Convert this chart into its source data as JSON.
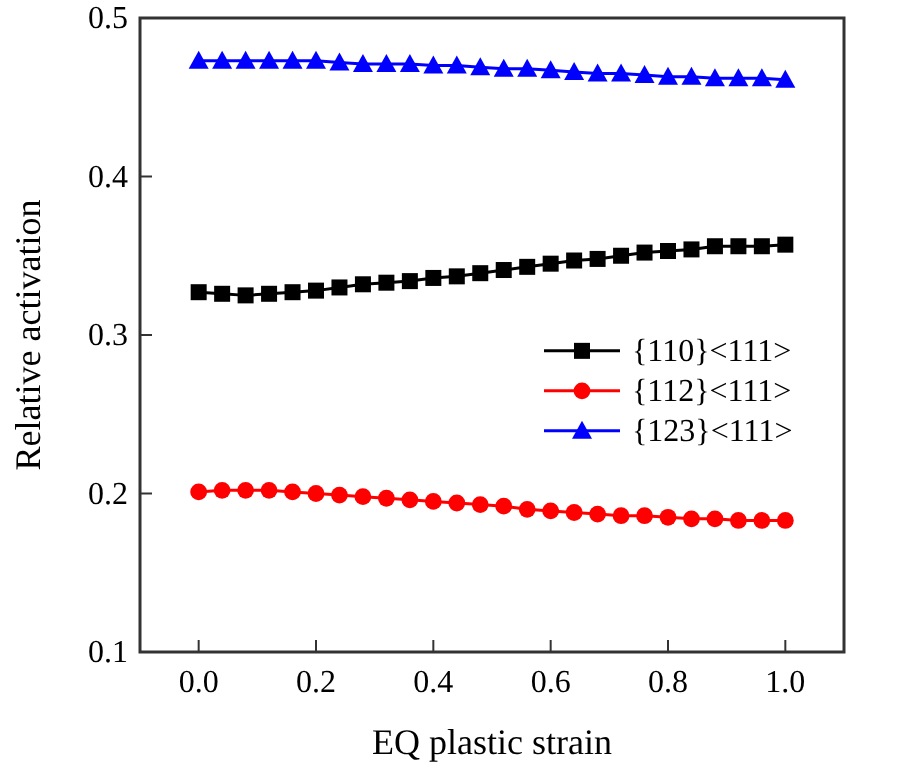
{
  "chart_data": {
    "type": "line",
    "xlabel": "EQ plastic strain",
    "ylabel": "Relative activation",
    "x": [
      0,
      0.04,
      0.08,
      0.12,
      0.16,
      0.2,
      0.24,
      0.28,
      0.32,
      0.36,
      0.4,
      0.44,
      0.48,
      0.52,
      0.56,
      0.6,
      0.64,
      0.68,
      0.72,
      0.76,
      0.8,
      0.84,
      0.88,
      0.92,
      0.96,
      1.0
    ],
    "series": [
      {
        "name": "{110}<111>",
        "color": "#000000",
        "marker": "square",
        "values": [
          0.327,
          0.326,
          0.325,
          0.326,
          0.327,
          0.328,
          0.33,
          0.332,
          0.333,
          0.334,
          0.336,
          0.337,
          0.339,
          0.341,
          0.343,
          0.345,
          0.347,
          0.348,
          0.35,
          0.352,
          0.353,
          0.354,
          0.356,
          0.356,
          0.356,
          0.357
        ]
      },
      {
        "name": "{112}<111>",
        "color": "#ff0000",
        "marker": "circle",
        "values": [
          0.201,
          0.202,
          0.202,
          0.202,
          0.201,
          0.2,
          0.199,
          0.198,
          0.197,
          0.196,
          0.195,
          0.194,
          0.193,
          0.192,
          0.19,
          0.189,
          0.188,
          0.187,
          0.186,
          0.186,
          0.185,
          0.184,
          0.184,
          0.183,
          0.183,
          0.183
        ]
      },
      {
        "name": "{123}<111>",
        "color": "#0000ff",
        "marker": "triangle",
        "values": [
          0.473,
          0.473,
          0.473,
          0.473,
          0.473,
          0.473,
          0.472,
          0.471,
          0.471,
          0.471,
          0.47,
          0.47,
          0.469,
          0.468,
          0.468,
          0.467,
          0.466,
          0.465,
          0.465,
          0.464,
          0.463,
          0.463,
          0.462,
          0.462,
          0.462,
          0.461
        ]
      }
    ],
    "xlim": [
      -0.1,
      1.1
    ],
    "xticks": [
      {
        "value": 0,
        "label": "0.0"
      },
      {
        "value": 0.2,
        "label": "0.2"
      },
      {
        "value": 0.4,
        "label": "0.4"
      },
      {
        "value": 0.6,
        "label": "0.6"
      },
      {
        "value": 0.8,
        "label": "0.8"
      },
      {
        "value": 1.0,
        "label": "1.0"
      }
    ],
    "ylim": [
      0.1,
      0.5
    ],
    "yticks": [
      0.1,
      0.2,
      0.3,
      0.4,
      0.5
    ],
    "grid": false,
    "legend": "right",
    "line_style": "solid"
  }
}
